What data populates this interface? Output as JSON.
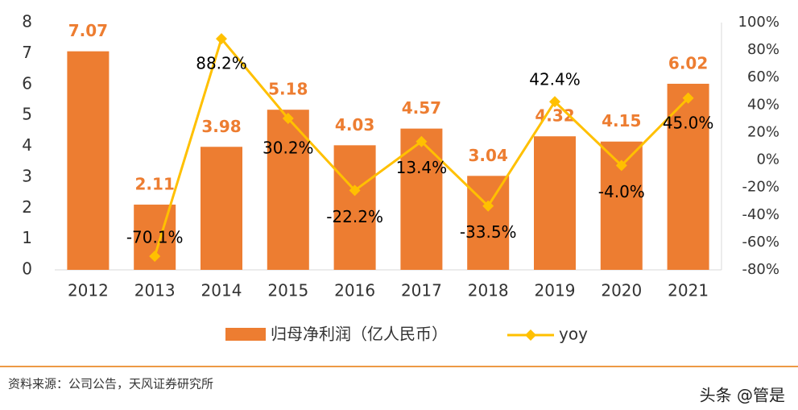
{
  "chart_data": {
    "type": "bar",
    "categories": [
      "2012",
      "2013",
      "2014",
      "2015",
      "2016",
      "2017",
      "2018",
      "2019",
      "2020",
      "2021"
    ],
    "series": [
      {
        "name": "归母净利润（亿人民币）",
        "type": "bar",
        "axis": "y",
        "color": "#ED7D31",
        "values": [
          7.07,
          2.11,
          3.98,
          5.18,
          4.03,
          4.57,
          3.04,
          4.32,
          4.15,
          6.02
        ]
      },
      {
        "name": "yoy",
        "type": "line",
        "axis": "y2",
        "color": "#FFC000",
        "values": [
          null,
          -70.1,
          88.2,
          30.2,
          -22.2,
          13.4,
          -33.5,
          42.4,
          -4.0,
          45.0
        ],
        "value_labels": [
          null,
          "-70.1%",
          "88.2%",
          "30.2%",
          "-22.2%",
          "13.4%",
          "-33.5%",
          "42.4%",
          "-4.0%",
          "45.0%"
        ]
      }
    ],
    "ylim": [
      0,
      8
    ],
    "yticks": [
      0,
      1,
      2,
      3,
      4,
      5,
      6,
      7,
      8
    ],
    "y2lim": [
      -80,
      100
    ],
    "y2ticks": [
      {
        "value": -80,
        "label": "-80%"
      },
      {
        "value": -60,
        "label": "-60%"
      },
      {
        "value": -40,
        "label": "-40%"
      },
      {
        "value": -20,
        "label": "-20%"
      },
      {
        "value": 0,
        "label": "0%"
      },
      {
        "value": 20,
        "label": "20%"
      },
      {
        "value": 40,
        "label": "40%"
      },
      {
        "value": 60,
        "label": "60%"
      },
      {
        "value": 80,
        "label": "80%"
      },
      {
        "value": 100,
        "label": "100%"
      }
    ],
    "legend": "bottom",
    "source": "资料来源：公司公告，天风证券研究所",
    "watermark": "头条 @管是"
  }
}
